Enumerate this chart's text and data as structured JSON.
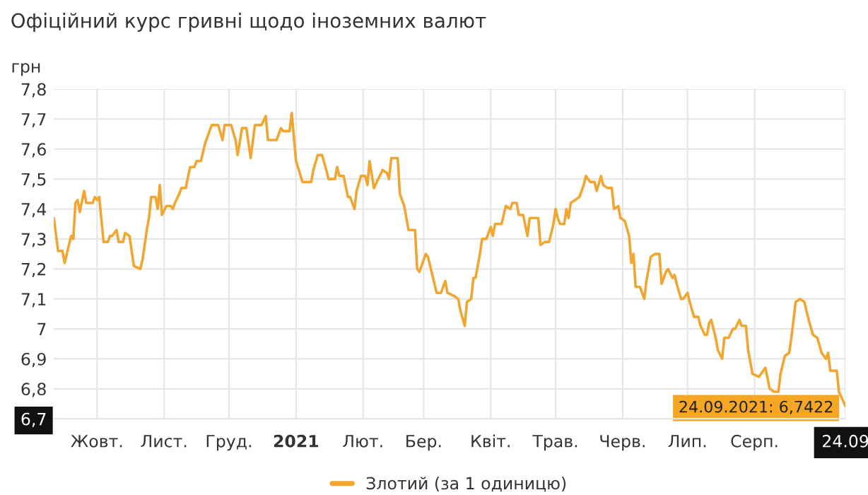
{
  "chart_data": {
    "type": "line",
    "title": "Офіційний курс гривні щодо іноземних валют",
    "ylabel": "грн",
    "x": [
      "2020-09-23",
      "2020-09-25",
      "2020-09-27",
      "2020-09-28",
      "2020-09-30",
      "2020-10-01",
      "2020-10-02",
      "2020-10-03",
      "2020-10-04",
      "2020-10-05",
      "2020-10-07",
      "2020-10-08",
      "2020-10-11",
      "2020-10-12",
      "2020-10-13",
      "2020-10-14",
      "2020-10-16",
      "2020-10-18",
      "2020-10-19",
      "2020-10-20",
      "2020-10-22",
      "2020-10-23",
      "2020-10-25",
      "2020-10-26",
      "2020-10-28",
      "2020-10-30",
      "2020-11-02",
      "2020-11-03",
      "2020-11-05",
      "2020-11-06",
      "2020-11-07",
      "2020-11-09",
      "2020-11-10",
      "2020-11-11",
      "2020-11-12",
      "2020-11-14",
      "2020-11-16",
      "2020-11-17",
      "2020-11-18",
      "2020-11-20",
      "2020-11-21",
      "2020-11-23",
      "2020-11-25",
      "2020-11-27",
      "2020-11-28",
      "2020-11-30",
      "2020-12-02",
      "2020-12-05",
      "2020-12-08",
      "2020-12-10",
      "2020-12-11",
      "2020-12-14",
      "2020-12-16",
      "2020-12-17",
      "2020-12-19",
      "2020-12-21",
      "2020-12-23",
      "2020-12-25",
      "2020-12-28",
      "2020-12-30",
      "2020-12-31",
      "2021-01-04",
      "2021-01-06",
      "2021-01-07",
      "2021-01-10",
      "2021-01-11",
      "2021-01-13",
      "2021-01-16",
      "2021-01-17",
      "2021-01-20",
      "2021-01-21",
      "2021-01-23",
      "2021-01-25",
      "2021-01-27",
      "2021-01-28",
      "2021-01-31",
      "2021-02-01",
      "2021-02-02",
      "2021-02-04",
      "2021-02-06",
      "2021-02-07",
      "2021-02-09",
      "2021-02-10",
      "2021-02-12",
      "2021-02-14",
      "2021-02-15",
      "2021-02-16",
      "2021-02-18",
      "2021-02-20",
      "2021-02-22",
      "2021-02-24",
      "2021-02-25",
      "2021-02-26",
      "2021-03-01",
      "2021-03-02",
      "2021-03-04",
      "2021-03-06",
      "2021-03-09",
      "2021-03-10",
      "2021-03-11",
      "2021-03-14",
      "2021-03-15",
      "2021-03-17",
      "2021-03-19",
      "2021-03-21",
      "2021-03-23",
      "2021-03-24",
      "2021-03-27",
      "2021-03-29",
      "2021-03-30",
      "2021-04-01",
      "2021-04-02",
      "2021-04-04",
      "2021-04-05",
      "2021-04-06",
      "2021-04-08",
      "2021-04-09",
      "2021-04-11",
      "2021-04-13",
      "2021-04-14",
      "2021-04-15",
      "2021-04-18",
      "2021-04-19",
      "2021-04-20",
      "2021-04-22",
      "2021-04-23",
      "2021-04-25",
      "2021-04-26",
      "2021-04-28",
      "2021-04-30",
      "2021-05-01",
      "2021-05-05",
      "2021-05-06",
      "2021-05-08",
      "2021-05-10",
      "2021-05-12",
      "2021-05-13",
      "2021-05-14",
      "2021-05-15",
      "2021-05-17",
      "2021-05-18",
      "2021-05-19",
      "2021-05-20",
      "2021-05-22",
      "2021-05-24",
      "2021-05-26",
      "2021-05-27",
      "2021-05-29",
      "2021-05-31",
      "2021-06-01",
      "2021-06-03",
      "2021-06-04",
      "2021-06-06",
      "2021-06-08",
      "2021-06-09",
      "2021-06-11",
      "2021-06-12",
      "2021-06-14",
      "2021-06-16",
      "2021-06-17",
      "2021-06-18",
      "2021-06-19",
      "2021-06-21",
      "2021-06-23",
      "2021-06-24",
      "2021-06-26",
      "2021-06-28",
      "2021-06-30",
      "2021-07-01",
      "2021-07-03",
      "2021-07-04",
      "2021-07-06",
      "2021-07-07",
      "2021-07-08",
      "2021-07-10",
      "2021-07-11",
      "2021-07-13",
      "2021-07-14",
      "2021-07-16",
      "2021-07-18",
      "2021-07-19",
      "2021-07-21",
      "2021-07-22",
      "2021-07-23",
      "2021-07-24",
      "2021-07-26",
      "2021-07-27",
      "2021-07-29",
      "2021-07-30",
      "2021-08-01",
      "2021-08-03",
      "2021-08-04",
      "2021-08-06",
      "2021-08-07",
      "2021-08-09",
      "2021-08-10",
      "2021-08-12",
      "2021-08-15",
      "2021-08-16",
      "2021-08-18",
      "2021-08-20",
      "2021-08-22",
      "2021-08-24",
      "2021-08-25",
      "2021-08-27",
      "2021-08-29",
      "2021-08-30",
      "2021-09-01",
      "2021-09-03",
      "2021-09-05",
      "2021-09-07",
      "2021-09-09",
      "2021-09-11",
      "2021-09-13",
      "2021-09-15",
      "2021-09-16",
      "2021-09-17",
      "2021-09-20",
      "2021-09-21",
      "2021-09-24"
    ],
    "series": [
      {
        "name": "Злотий (за 1 одиницю)",
        "color": "#f0a630",
        "values": [
          7.37,
          7.26,
          7.26,
          7.22,
          7.28,
          7.31,
          7.3,
          7.42,
          7.43,
          7.39,
          7.46,
          7.42,
          7.42,
          7.44,
          7.43,
          7.44,
          7.29,
          7.29,
          7.31,
          7.31,
          7.33,
          7.29,
          7.29,
          7.32,
          7.31,
          7.21,
          7.2,
          7.23,
          7.33,
          7.37,
          7.44,
          7.44,
          7.4,
          7.48,
          7.38,
          7.41,
          7.41,
          7.4,
          7.42,
          7.45,
          7.47,
          7.47,
          7.54,
          7.54,
          7.56,
          7.56,
          7.62,
          7.68,
          7.68,
          7.63,
          7.68,
          7.68,
          7.63,
          7.58,
          7.67,
          7.67,
          7.57,
          7.68,
          7.68,
          7.71,
          7.63,
          7.63,
          7.67,
          7.66,
          7.66,
          7.72,
          7.56,
          7.49,
          7.49,
          7.49,
          7.53,
          7.58,
          7.58,
          7.53,
          7.5,
          7.5,
          7.54,
          7.51,
          7.51,
          7.44,
          7.44,
          7.4,
          7.46,
          7.51,
          7.51,
          7.48,
          7.56,
          7.47,
          7.5,
          7.53,
          7.52,
          7.5,
          7.57,
          7.57,
          7.45,
          7.41,
          7.33,
          7.33,
          7.2,
          7.19,
          7.25,
          7.24,
          7.18,
          7.12,
          7.12,
          7.16,
          7.12,
          7.11,
          7.1,
          7.06,
          7.01,
          7.09,
          7.1,
          7.17,
          7.17,
          7.25,
          7.3,
          7.3,
          7.34,
          7.31,
          7.35,
          7.35,
          7.38,
          7.41,
          7.4,
          7.42,
          7.42,
          7.38,
          7.38,
          7.31,
          7.37,
          7.37,
          7.28,
          7.29,
          7.29,
          7.35,
          7.4,
          7.37,
          7.35,
          7.35,
          7.4,
          7.37,
          7.42,
          7.43,
          7.44,
          7.48,
          7.51,
          7.49,
          7.49,
          7.46,
          7.51,
          7.48,
          7.47,
          7.47,
          7.4,
          7.41,
          7.37,
          7.36,
          7.31,
          7.22,
          7.25,
          7.14,
          7.14,
          7.1,
          7.16,
          7.24,
          7.25,
          7.25,
          7.15,
          7.19,
          7.2,
          7.17,
          7.18,
          7.15,
          7.1,
          7.1,
          7.12,
          7.09,
          7.04,
          7.04,
          7.01,
          6.98,
          6.98,
          7.02,
          7.03,
          6.97,
          6.93,
          6.9,
          6.97,
          6.97,
          7.0,
          7.0,
          7.03,
          7.01,
          7.01,
          6.93,
          6.85,
          6.84,
          6.85,
          6.87,
          6.8,
          6.79,
          6.79,
          6.85,
          6.91,
          6.92,
          6.97,
          7.09,
          7.1,
          7.09,
          7.03,
          6.98,
          6.97,
          6.92,
          6.9,
          6.92,
          6.86,
          6.86,
          6.79,
          6.7422
        ]
      }
    ],
    "xlim": [
      "2020-09-23",
      "2021-09-24"
    ],
    "xticks": [
      {
        "value": "2020-10-13",
        "label": "Жовт."
      },
      {
        "value": "2020-11-13",
        "label": "Лист."
      },
      {
        "value": "2020-12-13",
        "label": "Груд."
      },
      {
        "value": "2021-01-13",
        "label": "2021"
      },
      {
        "value": "2021-02-13",
        "label": "Лют."
      },
      {
        "value": "2021-03-13",
        "label": "Бер."
      },
      {
        "value": "2021-04-13",
        "label": "Квіт."
      },
      {
        "value": "2021-05-13",
        "label": "Трав."
      },
      {
        "value": "2021-06-13",
        "label": "Черв."
      },
      {
        "value": "2021-07-13",
        "label": "Лип."
      },
      {
        "value": "2021-08-13",
        "label": "Серп."
      },
      {
        "value": "2021-09-24",
        "label": "24.09"
      }
    ],
    "ylim": [
      6.7,
      7.8
    ],
    "yticks": [
      {
        "value": 6.7,
        "label": "6,7"
      },
      {
        "value": 6.8,
        "label": "6,8"
      },
      {
        "value": 6.9,
        "label": "6,9"
      },
      {
        "value": 7,
        "label": "7"
      },
      {
        "value": 7.1,
        "label": "7,1"
      },
      {
        "value": 7.2,
        "label": "7,2"
      },
      {
        "value": 7.3,
        "label": "7,3"
      },
      {
        "value": 7.4,
        "label": "7,4"
      },
      {
        "value": 7.5,
        "label": "7,5"
      },
      {
        "value": 7.6,
        "label": "7,6"
      },
      {
        "value": 7.7,
        "label": "7,7"
      },
      {
        "value": 7.8,
        "label": "7,8"
      }
    ],
    "annotations": [
      {
        "text": "24.09.2021: 6,7422",
        "x": "2021-09-24",
        "y": 6.7422
      }
    ],
    "grid": true,
    "legend": "bottom",
    "marker": "none",
    "line_style": "solid"
  }
}
